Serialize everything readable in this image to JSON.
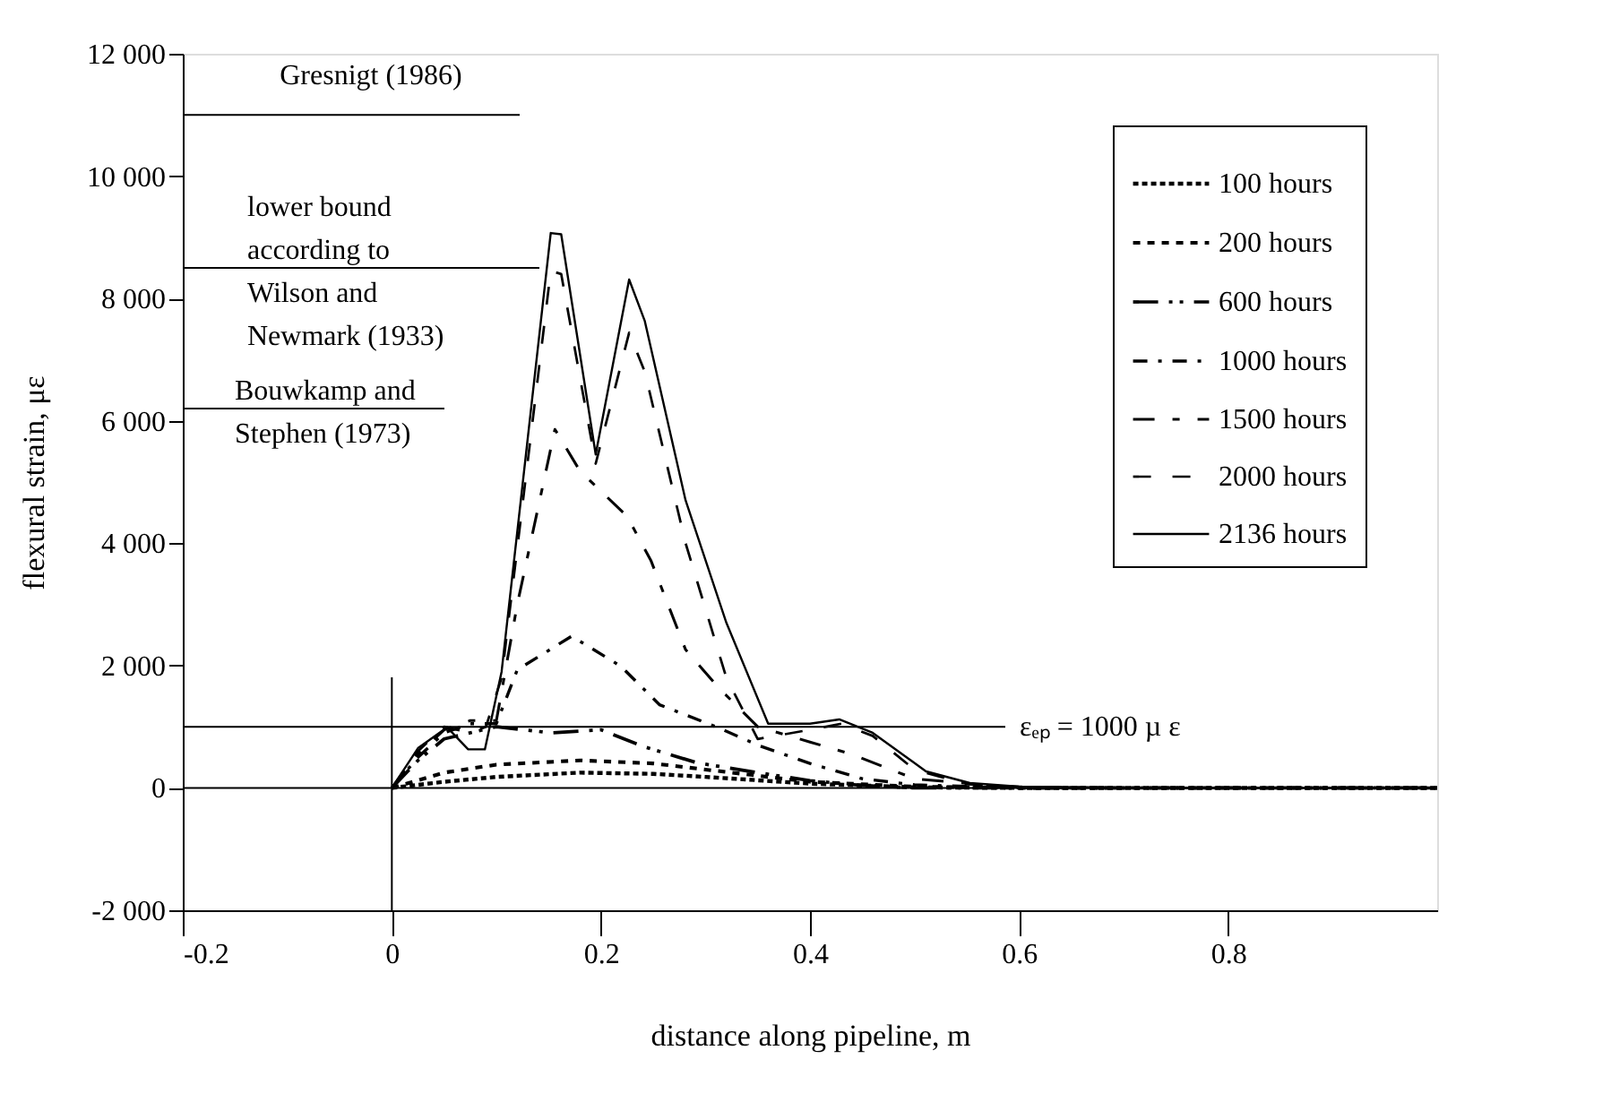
{
  "chart_data": {
    "type": "line",
    "xlabel": "distance along pipeline, m",
    "ylabel": "flexural strain, με",
    "xlim": [
      -0.2,
      1.0
    ],
    "xticks": [
      {
        "value": -0.2,
        "label": "-0.2"
      },
      0,
      0.2,
      0.4,
      0.6,
      0.8
    ],
    "ylim": [
      -2000,
      12000
    ],
    "yticks": [
      {
        "value": -2000,
        "label": "-2 000"
      },
      0,
      {
        "value": 2000,
        "label": "2 000"
      },
      {
        "value": 4000,
        "label": "4 000"
      },
      {
        "value": 6000,
        "label": "6 000"
      },
      {
        "value": 8000,
        "label": "8 000"
      },
      {
        "value": 10000,
        "label": "10 000"
      },
      {
        "value": 12000,
        "label": "12 000"
      }
    ],
    "grid": false,
    "legend": "top right",
    "marker": "none",
    "series": [
      {
        "name": "100 hours",
        "color": "#000000",
        "line_style": "dotted",
        "x": [
          0,
          0.05,
          0.1,
          0.18,
          0.25,
          0.3,
          0.4,
          0.5,
          0.6,
          0.8,
          1.0
        ],
        "values": [
          0,
          100,
          180,
          250,
          230,
          180,
          70,
          10,
          0,
          0,
          0
        ]
      },
      {
        "name": "200 hours",
        "color": "#000000",
        "line_style": "dashed",
        "x": [
          0,
          0.05,
          0.1,
          0.18,
          0.25,
          0.3,
          0.4,
          0.5,
          0.6,
          0.8,
          1.0
        ],
        "values": [
          0,
          250,
          380,
          450,
          400,
          300,
          100,
          20,
          0,
          0,
          0
        ]
      },
      {
        "name": "600 hours",
        "color": "#000000",
        "line_style": "dashed",
        "x": [
          0,
          0.025,
          0.05,
          0.1,
          0.152,
          0.2,
          0.24,
          0.292,
          0.35,
          0.4,
          0.45,
          0.5,
          0.6,
          0.8,
          1.0
        ],
        "values": [
          0,
          450,
          800,
          1000,
          900,
          950,
          680,
          410,
          250,
          120,
          40,
          0,
          0,
          0,
          0
        ]
      },
      {
        "name": "1000 hours",
        "color": "#000000",
        "line_style": "dashed",
        "x": [
          0,
          0.025,
          0.05,
          0.075,
          0.1,
          0.12,
          0.172,
          0.219,
          0.256,
          0.313,
          0.35,
          0.4,
          0.45,
          0.5,
          0.6,
          0.8,
          1.0
        ],
        "values": [
          0,
          500,
          900,
          1050,
          1050,
          1930,
          2480,
          1990,
          1360,
          980,
          700,
          400,
          150,
          50,
          0,
          0,
          0
        ]
      },
      {
        "name": "1500 hours",
        "color": "#000000",
        "line_style": "dashed",
        "x": [
          0,
          0.025,
          0.05,
          0.075,
          0.1,
          0.12,
          0.156,
          0.18,
          0.225,
          0.248,
          0.281,
          0.313,
          0.35,
          0.4,
          0.44,
          0.5,
          0.6,
          0.8,
          1.0
        ],
        "values": [
          0,
          550,
          950,
          1100,
          1100,
          3000,
          5860,
          5180,
          4440,
          3710,
          2260,
          1630,
          1000,
          750,
          550,
          150,
          0,
          0,
          0
        ]
      },
      {
        "name": "2000 hours",
        "color": "#000000",
        "line_style": "dashed",
        "x": [
          0,
          0.025,
          0.05,
          0.075,
          0.09,
          0.105,
          0.152,
          0.162,
          0.195,
          0.227,
          0.242,
          0.281,
          0.32,
          0.35,
          0.4,
          0.43,
          0.46,
          0.5,
          0.55,
          0.6,
          0.7,
          0.8,
          0.9,
          1.0
        ],
        "values": [
          0,
          600,
          1000,
          900,
          1000,
          1800,
          8450,
          8400,
          5300,
          7440,
          6800,
          4000,
          1800,
          800,
          950,
          1050,
          850,
          300,
          60,
          20,
          0,
          0,
          0,
          0
        ]
      },
      {
        "name": "2136 hours",
        "color": "#000000",
        "line_style": "solid",
        "x": [
          0,
          0.025,
          0.053,
          0.073,
          0.089,
          0.105,
          0.152,
          0.162,
          0.195,
          0.227,
          0.242,
          0.281,
          0.32,
          0.36,
          0.4,
          0.428,
          0.46,
          0.511,
          0.553,
          0.6,
          0.7,
          0.8,
          0.9,
          1.0
        ],
        "values": [
          0,
          650,
          990,
          630,
          630,
          1900,
          9070,
          9050,
          5450,
          8310,
          7630,
          4700,
          2700,
          1050,
          1050,
          1120,
          900,
          270,
          80,
          20,
          0,
          0,
          0,
          0
        ]
      }
    ],
    "ref_lines": [
      {
        "axis": "y",
        "value": 11000,
        "label": "Gresnigt (1986)"
      },
      {
        "axis": "y",
        "value": 8500,
        "label": "lower bound\naccording to\nWilson and\nNewmark (1933)"
      },
      {
        "axis": "y",
        "value": 6200,
        "label": "Bouwkamp and\nStephen (1973)"
      },
      {
        "axis": "y",
        "value": 1000,
        "label": "εₑₚ = 1000 µ ε"
      },
      {
        "axis": "y",
        "value": 0
      },
      {
        "axis": "x",
        "value": 0
      }
    ]
  }
}
